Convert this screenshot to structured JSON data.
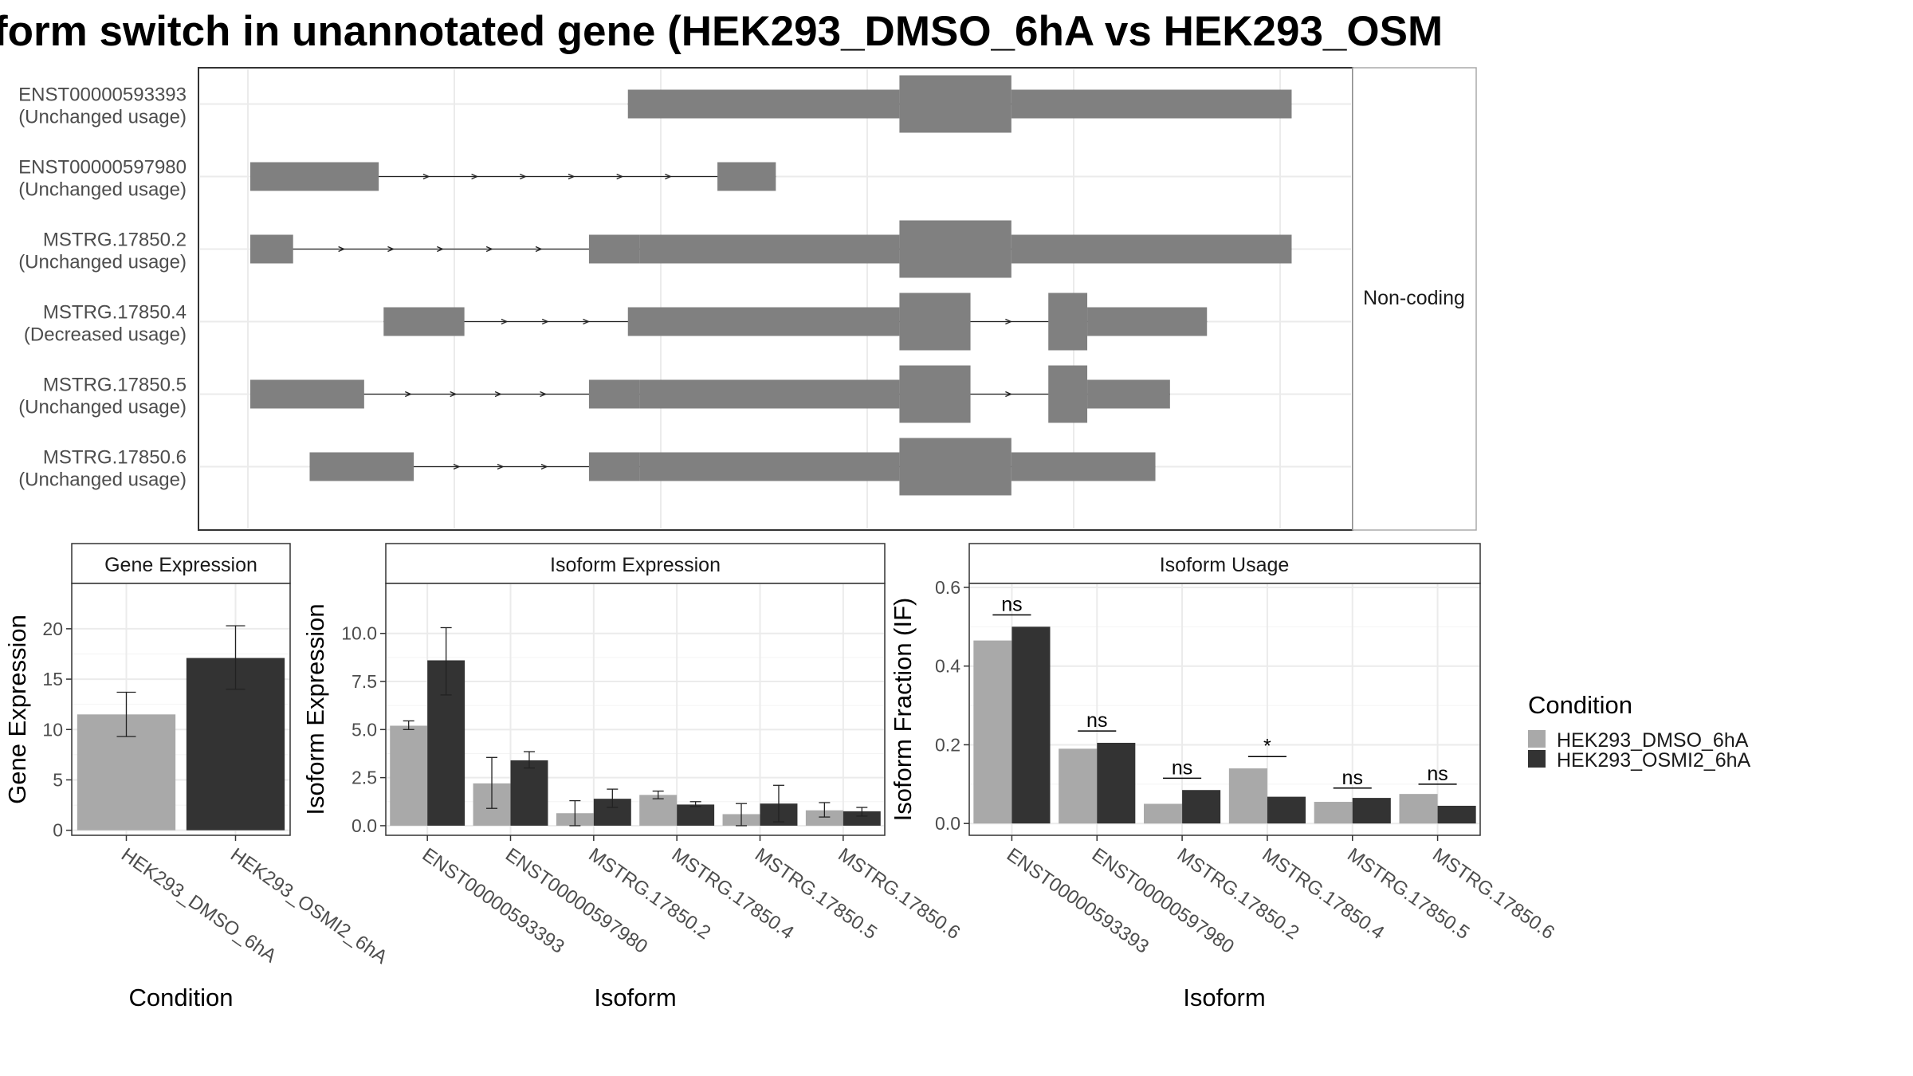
{
  "figure": {
    "title": "form switch in unannotated gene (HEK293_DMSO_6hA vs HEK293_OSM",
    "colors": {
      "dmso": "#a9a9a9",
      "osmi": "#333333",
      "exon": "#808080",
      "grid": "#ebebeb",
      "strip": "#ffffff"
    }
  },
  "chart_data": [
    {
      "type": "gene-structure",
      "strip_label": "Non-coding",
      "transcripts": [
        {
          "id": "ENST00000593393",
          "usage": "(Unchanged usage)",
          "exons": [
            [
              0.388,
              0.667,
              "utr"
            ],
            [
              0.667,
              0.782,
              "cds"
            ],
            [
              0.782,
              1.07,
              "utr"
            ]
          ]
        },
        {
          "id": "ENST00000597980",
          "usage": "(Unchanged usage)",
          "exons": [
            [
              0.0,
              0.132,
              "utr"
            ],
            [
              0.48,
              0.54,
              "utr"
            ]
          ]
        },
        {
          "id": "MSTRG.17850.2",
          "usage": "(Unchanged usage)",
          "exons": [
            [
              0.0,
              0.044,
              "utr"
            ],
            [
              0.348,
              0.4,
              "utr"
            ],
            [
              0.4,
              0.667,
              "utr"
            ],
            [
              0.667,
              0.782,
              "cds"
            ],
            [
              0.782,
              1.07,
              "utr"
            ]
          ]
        },
        {
          "id": "MSTRG.17850.4",
          "usage": "(Decreased usage)",
          "exons": [
            [
              0.137,
              0.22,
              "utr"
            ],
            [
              0.388,
              0.667,
              "utr"
            ],
            [
              0.667,
              0.74,
              "cds"
            ],
            [
              0.82,
              0.86,
              "cds"
            ],
            [
              0.86,
              0.983,
              "utr"
            ]
          ]
        },
        {
          "id": "MSTRG.17850.5",
          "usage": "(Unchanged usage)",
          "exons": [
            [
              0.0,
              0.117,
              "utr"
            ],
            [
              0.348,
              0.4,
              "utr"
            ],
            [
              0.4,
              0.667,
              "utr"
            ],
            [
              0.667,
              0.74,
              "cds"
            ],
            [
              0.82,
              0.86,
              "cds"
            ],
            [
              0.86,
              0.945,
              "utr"
            ]
          ]
        },
        {
          "id": "MSTRG.17850.6",
          "usage": "(Unchanged usage)",
          "exons": [
            [
              0.061,
              0.168,
              "utr"
            ],
            [
              0.348,
              0.4,
              "utr"
            ],
            [
              0.4,
              0.667,
              "utr"
            ],
            [
              0.667,
              0.782,
              "cds"
            ],
            [
              0.782,
              0.93,
              "utr"
            ]
          ]
        }
      ]
    },
    {
      "type": "bar",
      "title": "Gene Expression",
      "xlabel": "Condition",
      "ylabel": "Gene Expression",
      "ylim": [
        -0.5,
        24.5
      ],
      "yticks": [
        0,
        5,
        10,
        15,
        20
      ],
      "ytick_labels": [
        "0",
        "5",
        "10",
        "15",
        "20"
      ],
      "categories": [
        "HEK293_DMSO_6hA",
        "HEK293_OSMI2_6hA"
      ],
      "values": [
        11.5,
        17.1
      ],
      "err_low": [
        9.3,
        14.0
      ],
      "err_high": [
        13.7,
        20.3
      ],
      "series_colors": [
        "#a9a9a9",
        "#333333"
      ]
    },
    {
      "type": "bar",
      "title": "Isoform Expression",
      "xlabel": "Isoform",
      "ylabel": "Isoform Expression",
      "ylim": [
        -0.5,
        12.6
      ],
      "yticks": [
        0,
        2.5,
        5,
        7.5,
        10
      ],
      "ytick_labels": [
        "0.0",
        "2.5",
        "5.0",
        "7.5",
        "10.0"
      ],
      "categories": [
        "ENST00000593393",
        "ENST00000597980",
        "MSTRG.17850.2",
        "MSTRG.17850.4",
        "MSTRG.17850.5",
        "MSTRG.17850.6"
      ],
      "series": [
        {
          "name": "HEK293_DMSO_6hA",
          "values": [
            5.2,
            2.2,
            0.65,
            1.6,
            0.6,
            0.8
          ],
          "err_low": [
            5.0,
            0.9,
            0.0,
            1.4,
            0.0,
            0.45
          ],
          "err_high": [
            5.45,
            3.55,
            1.3,
            1.8,
            1.15,
            1.2
          ]
        },
        {
          "name": "HEK293_OSMI2_6hA",
          "values": [
            8.6,
            3.4,
            1.4,
            1.1,
            1.15,
            0.75
          ],
          "err_low": [
            6.8,
            3.0,
            0.95,
            1.0,
            0.2,
            0.5
          ],
          "err_high": [
            10.3,
            3.85,
            1.9,
            1.25,
            2.1,
            0.95
          ]
        }
      ]
    },
    {
      "type": "bar",
      "title": "Isoform Usage",
      "xlabel": "Isoform",
      "ylabel": "Isoform Fraction (IF)",
      "ylim": [
        -0.03,
        0.61
      ],
      "yticks": [
        0,
        0.2,
        0.4,
        0.6
      ],
      "ytick_labels": [
        "0.0",
        "0.2",
        "0.4",
        "0.6"
      ],
      "categories": [
        "ENST00000593393",
        "ENST00000597980",
        "MSTRG.17850.2",
        "MSTRG.17850.4",
        "MSTRG.17850.5",
        "MSTRG.17850.6"
      ],
      "series": [
        {
          "name": "HEK293_DMSO_6hA",
          "values": [
            0.465,
            0.19,
            0.05,
            0.14,
            0.055,
            0.075
          ]
        },
        {
          "name": "HEK293_OSMI2_6hA",
          "values": [
            0.5,
            0.205,
            0.085,
            0.068,
            0.065,
            0.045
          ]
        }
      ],
      "significance": [
        {
          "label": "ns",
          "y": 0.53
        },
        {
          "label": "ns",
          "y": 0.235
        },
        {
          "label": "ns",
          "y": 0.115
        },
        {
          "label": "*",
          "y": 0.17
        },
        {
          "label": "ns",
          "y": 0.09
        },
        {
          "label": "ns",
          "y": 0.1
        }
      ]
    }
  ],
  "legend": {
    "title": "Condition",
    "entries": [
      {
        "label": "HEK293_DMSO_6hA",
        "color": "#a9a9a9"
      },
      {
        "label": "HEK293_OSMI2_6hA",
        "color": "#333333"
      }
    ]
  }
}
